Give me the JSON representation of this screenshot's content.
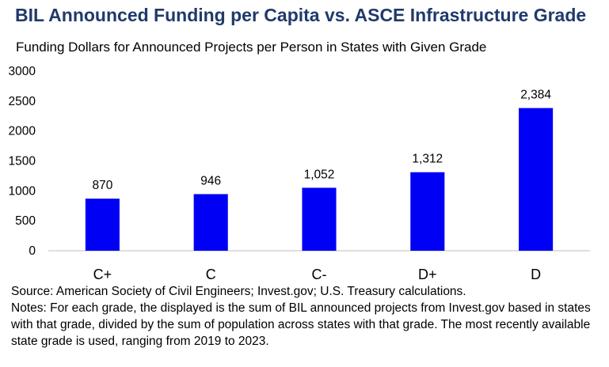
{
  "title": "BIL Announced Funding per Capita vs. ASCE Infrastructure Grade",
  "subtitle": "Funding Dollars for Announced Projects per Person in States with Given Grade",
  "colors": {
    "bar": "#0000f5",
    "axis": "#bfbfbf",
    "title": "#1f3a6b"
  },
  "chart_data": {
    "type": "bar",
    "title": "BIL Announced Funding per Capita vs. ASCE Infrastructure Grade",
    "subtitle": "Funding Dollars for Announced Projects per Person in States with Given Grade",
    "categories": [
      "C+",
      "C",
      "C-",
      "D+",
      "D"
    ],
    "values": [
      870,
      946,
      1052,
      1312,
      2384
    ],
    "data_labels": [
      "870",
      "946",
      "1,052",
      "1,312",
      "2,384"
    ],
    "yticks": [
      "0",
      "500",
      "1000",
      "1500",
      "2000",
      "2500",
      "3000"
    ],
    "ylim": [
      0,
      3000
    ],
    "xlabel": "",
    "ylabel": "",
    "grid": false,
    "legend": "none"
  },
  "notes": {
    "source": "Source: American Society of Civil Engineers; Invest.gov; U.S. Treasury calculations.",
    "notes": "Notes: For each grade, the displayed is the sum of BIL announced projects from Invest.gov based in states with that grade, divided by the sum of population across states with that grade. The most recently available state grade is used, ranging from 2019 to 2023."
  }
}
